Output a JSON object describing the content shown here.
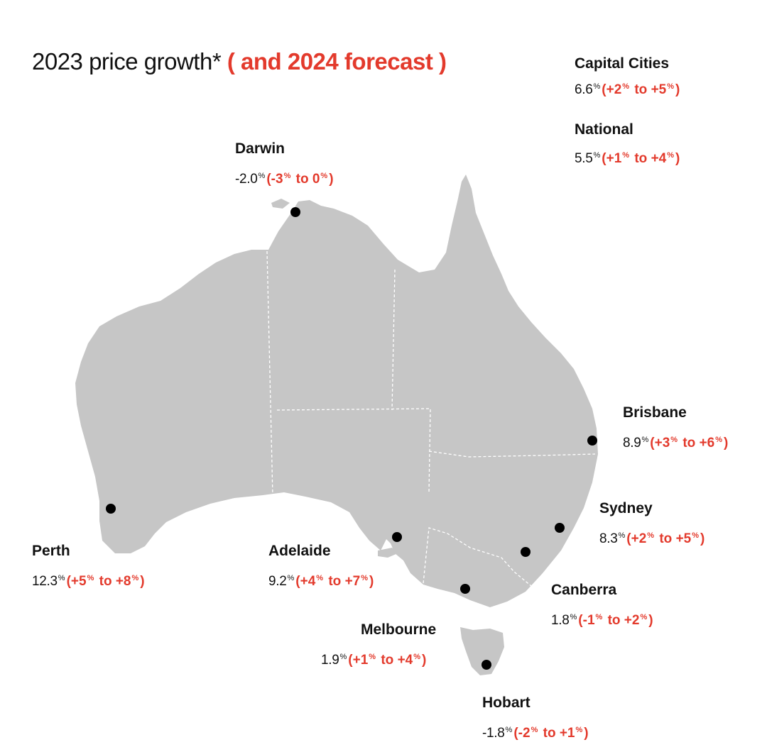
{
  "title": {
    "main": "2023 price growth*",
    "forecast": "( and 2024 forecast )"
  },
  "accent_color": "#e33a2c",
  "land_color": "#c6c6c6",
  "marker_color": "#000000",
  "summary": [
    {
      "name": "Capital Cities",
      "value": "6.6",
      "unit": "%",
      "fc_open": "(+2",
      "fc_to": " to +5",
      "fc_close": ")"
    },
    {
      "name": "National",
      "value": "5.5",
      "unit": "%",
      "fc_open": "(+1",
      "fc_to": " to +4",
      "fc_close": ")"
    }
  ],
  "cities": {
    "darwin": {
      "name": "Darwin",
      "value": "-2.0",
      "unit": "%",
      "fc_open": "(-3",
      "fc_to": " to 0",
      "fc_close": ")"
    },
    "brisbane": {
      "name": "Brisbane",
      "value": "8.9",
      "unit": "%",
      "fc_open": "(+3",
      "fc_to": " to +6",
      "fc_close": ")"
    },
    "sydney": {
      "name": "Sydney",
      "value": "8.3",
      "unit": "%",
      "fc_open": "(+2",
      "fc_to": " to +5",
      "fc_close": ")"
    },
    "perth": {
      "name": "Perth",
      "value": "12.3",
      "unit": "%",
      "fc_open": "(+5",
      "fc_to": " to +8",
      "fc_close": ")"
    },
    "adelaide": {
      "name": "Adelaide",
      "value": "9.2",
      "unit": "%",
      "fc_open": "(+4",
      "fc_to": " to +7",
      "fc_close": ")"
    },
    "canberra": {
      "name": "Canberra",
      "value": "1.8",
      "unit": "%",
      "fc_open": "(-1",
      "fc_to": " to +2",
      "fc_close": ")"
    },
    "melbourne": {
      "name": "Melbourne",
      "value": "1.9",
      "unit": "%",
      "fc_open": "(+1",
      "fc_to": " to +4",
      "fc_close": ")"
    },
    "hobart": {
      "name": "Hobart",
      "value": "-1.8",
      "unit": "%",
      "fc_open": "(-2",
      "fc_to": " to +1",
      "fc_close": ")"
    }
  }
}
